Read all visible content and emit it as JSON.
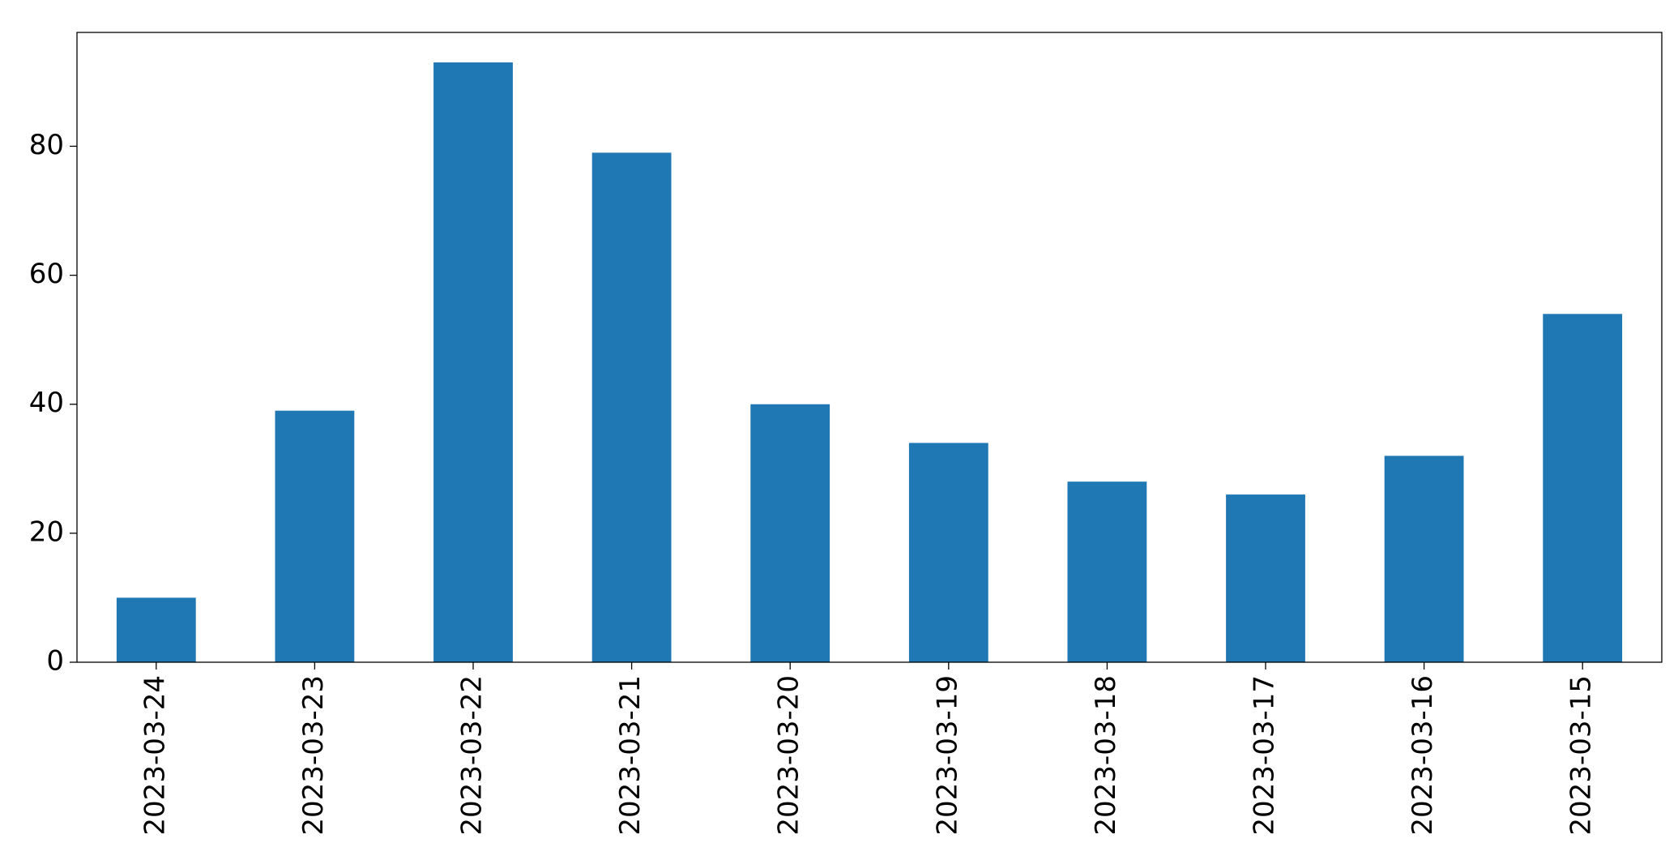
{
  "chart_data": {
    "type": "bar",
    "categories": [
      "2023-03-24",
      "2023-03-23",
      "2023-03-22",
      "2023-03-21",
      "2023-03-20",
      "2023-03-19",
      "2023-03-18",
      "2023-03-17",
      "2023-03-16",
      "2023-03-15"
    ],
    "values": [
      10,
      39,
      93,
      79,
      40,
      34,
      28,
      26,
      32,
      54
    ],
    "color": "#1f77b4",
    "ylim": [
      0,
      97.65
    ],
    "yticks": [
      0,
      20,
      40,
      60,
      80
    ],
    "grid": false
  }
}
